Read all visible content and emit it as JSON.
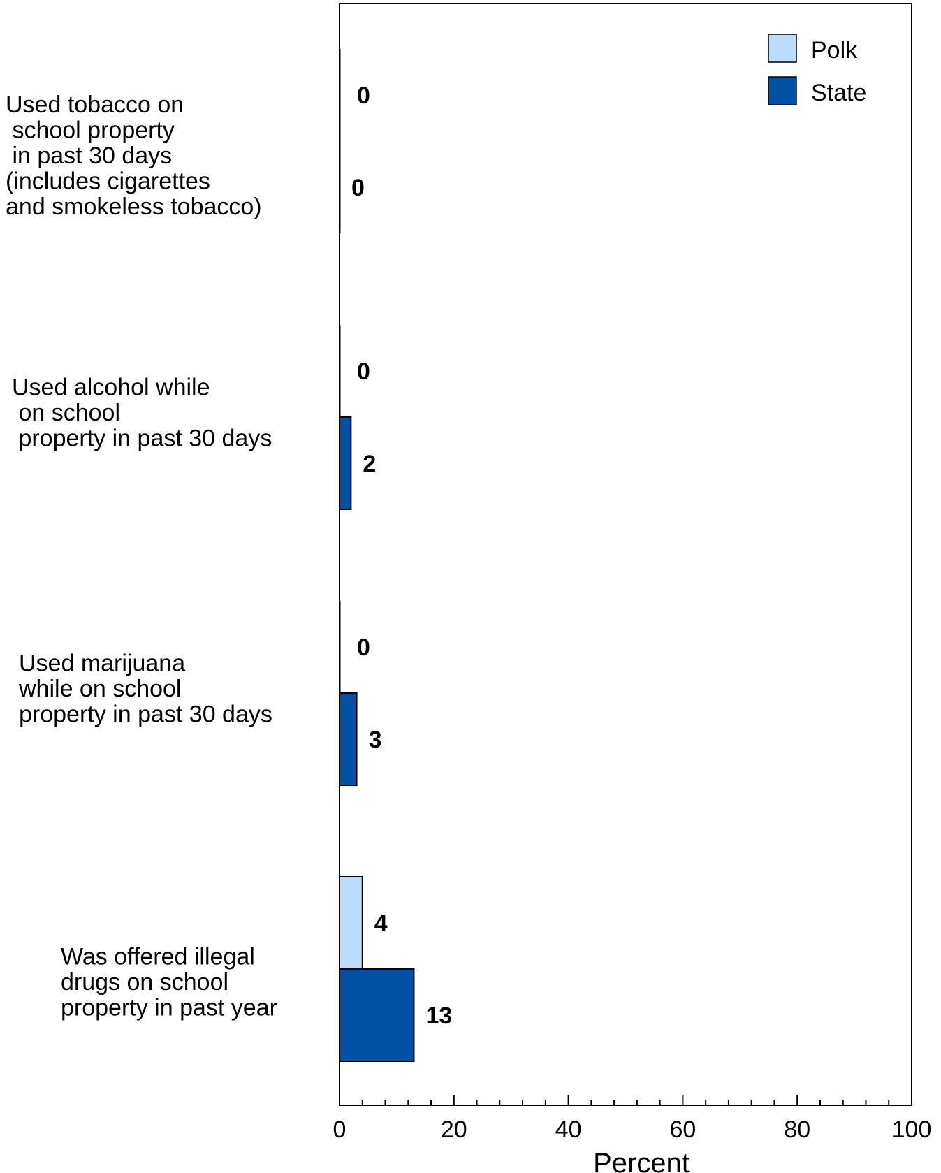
{
  "chart_data": {
    "type": "bar",
    "orientation": "horizontal",
    "categories": [
      [
        "Used tobacco on",
        " school property",
        " in past 30 days",
        "(includes cigarettes",
        "and smokeless tobacco)"
      ],
      [
        "Used alcohol while",
        " on school",
        " property in past 30 days"
      ],
      [
        "Used marijuana",
        "while on school",
        "property in past 30 days"
      ],
      [
        "Was offered illegal",
        "drugs on school",
        "property in past year"
      ]
    ],
    "series": [
      {
        "name": "Polk",
        "color": "#bbdcfb",
        "values": [
          0,
          0,
          0,
          4
        ],
        "labels": [
          "0",
          "0",
          "0",
          "4"
        ]
      },
      {
        "name": "State",
        "color": "#0051a6",
        "values": [
          0,
          2,
          3,
          13
        ],
        "labels": [
          "0",
          "2",
          "3",
          "13"
        ]
      }
    ],
    "xlabel": "Percent",
    "xlim": [
      0,
      100
    ],
    "xticks": [
      0,
      20,
      40,
      60,
      80,
      100
    ],
    "xtick_labels": [
      "0",
      "20",
      "40",
      "60",
      "80",
      "100"
    ],
    "grid": false,
    "legend_position": "top-right"
  }
}
